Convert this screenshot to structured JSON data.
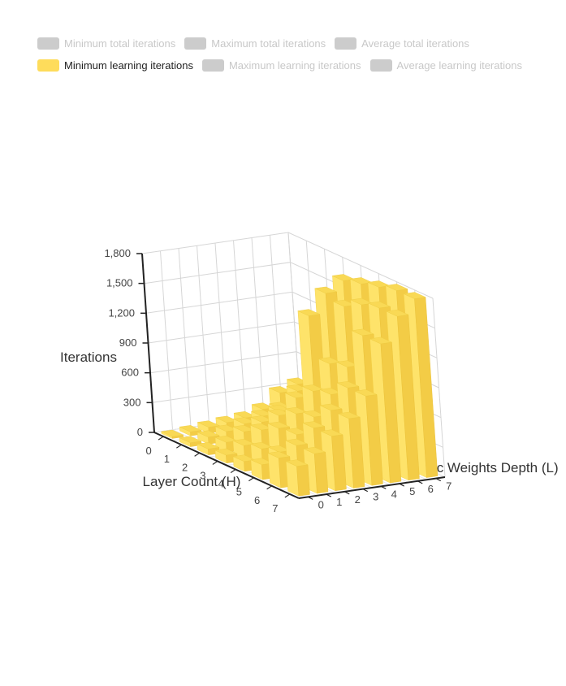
{
  "legend": {
    "items": [
      {
        "label": "Minimum total iterations",
        "active": false
      },
      {
        "label": "Maximum total iterations",
        "active": false
      },
      {
        "label": "Average total iterations",
        "active": false
      },
      {
        "label": "Minimum learning iterations",
        "active": true
      },
      {
        "label": "Maximum learning iterations",
        "active": false
      },
      {
        "label": "Average learning iterations",
        "active": false
      }
    ],
    "active_color": "#fedc5b",
    "inactive_color": "#cccccc"
  },
  "chart_data": {
    "type": "bar3d",
    "title": "",
    "ylabel": "Iterations",
    "xlabel": "Layer Count (H)",
    "zlabel": "Synaptic Weights Depth (L)",
    "ylim": [
      0,
      1800
    ],
    "yticks": [
      "0",
      "300",
      "600",
      "900",
      "1,200",
      "1,500",
      "1,800"
    ],
    "x_categories": [
      "0",
      "1",
      "2",
      "3",
      "4",
      "5",
      "6",
      "7"
    ],
    "z_categories": [
      "0",
      "1",
      "2",
      "3",
      "4",
      "5",
      "6",
      "7"
    ],
    "series": [
      {
        "name": "Minimum learning iterations",
        "color": "#fedc5b",
        "values_by_h": [
          [
            20,
            40,
            60,
            80,
            100,
            160,
            300,
            360
          ],
          [
            40,
            70,
            100,
            150,
            200,
            250,
            400,
            650
          ],
          [
            60,
            100,
            180,
            250,
            330,
            420,
            700,
            900
          ],
          [
            80,
            150,
            280,
            400,
            550,
            1350,
            1550,
            1650
          ],
          [
            100,
            200,
            380,
            500,
            700,
            950,
            1500,
            1700
          ],
          [
            150,
            250,
            400,
            550,
            750,
            1000,
            1600,
            1750
          ],
          [
            300,
            400,
            550,
            700,
            900,
            1400,
            1650,
            1800
          ],
          [
            300,
            400,
            550,
            700,
            900,
            1400,
            1650,
            1800
          ]
        ]
      }
    ],
    "grid": true
  }
}
